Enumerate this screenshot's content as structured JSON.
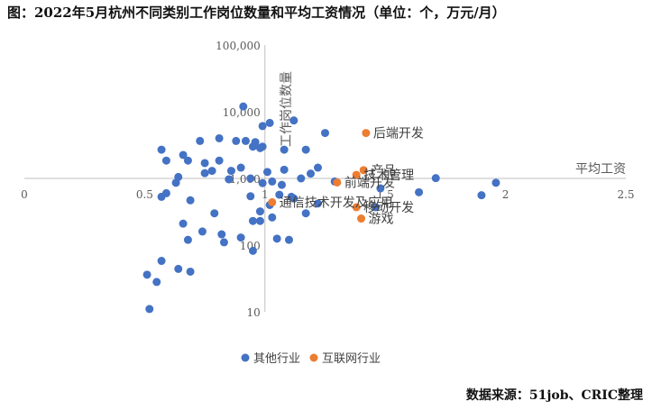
{
  "title": "图：2022年5月杭州不同类别工作岗位数量和平均工资情况（单位：个，万元/月）",
  "source": "数据来源：51job、CRIC整理",
  "colors": {
    "other": "#4472c4",
    "internet": "#ed7d31",
    "axis": "#bfbfbf"
  },
  "chart_data": {
    "type": "scatter",
    "title": "图：2022年5月杭州不同类别工作岗位数量和平均工资情况（单位：个，万元/月）",
    "xlabel": "平均工资",
    "ylabel": "工作岗位数量",
    "xlim": [
      0,
      2.5
    ],
    "ylim": [
      10,
      100000
    ],
    "y_scale": "log",
    "x_crosses_y_at": 1000,
    "y_crosses_x_at": 1,
    "x_ticks": [
      {
        "v": 0,
        "label": "0"
      },
      {
        "v": 0.5,
        "label": "0.5"
      },
      {
        "v": 1,
        "label": "1"
      },
      {
        "v": 1.5,
        "label": "1.5"
      },
      {
        "v": 2,
        "label": "2"
      },
      {
        "v": 2.5,
        "label": "2.5"
      }
    ],
    "y_ticks": [
      {
        "v": 10,
        "label": "10"
      },
      {
        "v": 100,
        "label": "100"
      },
      {
        "v": 1000,
        "label": "1,000"
      },
      {
        "v": 10000,
        "label": "10,000"
      },
      {
        "v": 100000,
        "label": "100,000"
      }
    ],
    "grid": false,
    "legend_position": "bottom",
    "series": [
      {
        "name": "其他行业",
        "color": "#4472c4",
        "points": [
          [
            0.91,
            12000
          ],
          [
            1.12,
            7400
          ],
          [
            1.02,
            6800
          ],
          [
            0.99,
            6100
          ],
          [
            1.25,
            4800
          ],
          [
            0.81,
            4000
          ],
          [
            0.88,
            3650
          ],
          [
            0.92,
            3650
          ],
          [
            0.73,
            3650
          ],
          [
            0.96,
            3500
          ],
          [
            0.99,
            3000
          ],
          [
            0.95,
            3000
          ],
          [
            0.98,
            2850
          ],
          [
            0.57,
            2700
          ],
          [
            1.08,
            2700
          ],
          [
            1.17,
            2700
          ],
          [
            0.66,
            2250
          ],
          [
            0.59,
            1850
          ],
          [
            0.68,
            1850
          ],
          [
            0.75,
            1700
          ],
          [
            0.81,
            1850
          ],
          [
            0.9,
            1450
          ],
          [
            1.08,
            1350
          ],
          [
            1.22,
            1450
          ],
          [
            0.86,
            1300
          ],
          [
            1.01,
            1250
          ],
          [
            1.19,
            1180
          ],
          [
            0.78,
            1300
          ],
          [
            0.75,
            1200
          ],
          [
            0.64,
            1050
          ],
          [
            0.85,
            970
          ],
          [
            0.94,
            1000
          ],
          [
            1.15,
            1000
          ],
          [
            1.03,
            900
          ],
          [
            0.99,
            850
          ],
          [
            1.07,
            800
          ],
          [
            0.63,
            860
          ],
          [
            1.29,
            900
          ],
          [
            1.71,
            1010
          ],
          [
            1.96,
            860
          ],
          [
            1.48,
            710
          ],
          [
            1.64,
            620
          ],
          [
            1.9,
            560
          ],
          [
            1.12,
            500
          ],
          [
            1.06,
            570
          ],
          [
            1.11,
            530
          ],
          [
            0.69,
            470
          ],
          [
            0.57,
            530
          ],
          [
            0.59,
            600
          ],
          [
            0.94,
            540
          ],
          [
            1.02,
            400
          ],
          [
            1.22,
            420
          ],
          [
            1.46,
            370
          ],
          [
            0.79,
            300
          ],
          [
            1.03,
            260
          ],
          [
            0.95,
            230
          ],
          [
            1.17,
            300
          ],
          [
            0.98,
            320
          ],
          [
            0.98,
            230
          ],
          [
            0.66,
            210
          ],
          [
            0.74,
            160
          ],
          [
            0.82,
            145
          ],
          [
            0.9,
            130
          ],
          [
            0.68,
            120
          ],
          [
            1.05,
            125
          ],
          [
            1.1,
            120
          ],
          [
            0.83,
            110
          ],
          [
            0.95,
            82
          ],
          [
            0.57,
            58
          ],
          [
            0.64,
            44
          ],
          [
            0.69,
            40
          ],
          [
            0.51,
            36
          ],
          [
            0.55,
            28
          ],
          [
            0.52,
            11
          ]
        ]
      },
      {
        "name": "互联网行业",
        "color": "#ed7d31",
        "points": [
          {
            "label": "后端开发",
            "x": 1.42,
            "y": 4800
          },
          {
            "label": "产品",
            "x": 1.41,
            "y": 1330
          },
          {
            "label": "技术管理",
            "x": 1.38,
            "y": 1130
          },
          {
            "label": "前端开发",
            "x": 1.3,
            "y": 870
          },
          {
            "label": "通信技术开发及应用",
            "x": 1.03,
            "y": 440
          },
          {
            "label": "移动开发",
            "x": 1.38,
            "y": 370
          },
          {
            "label": "游戏",
            "x": 1.4,
            "y": 250
          }
        ]
      }
    ]
  }
}
